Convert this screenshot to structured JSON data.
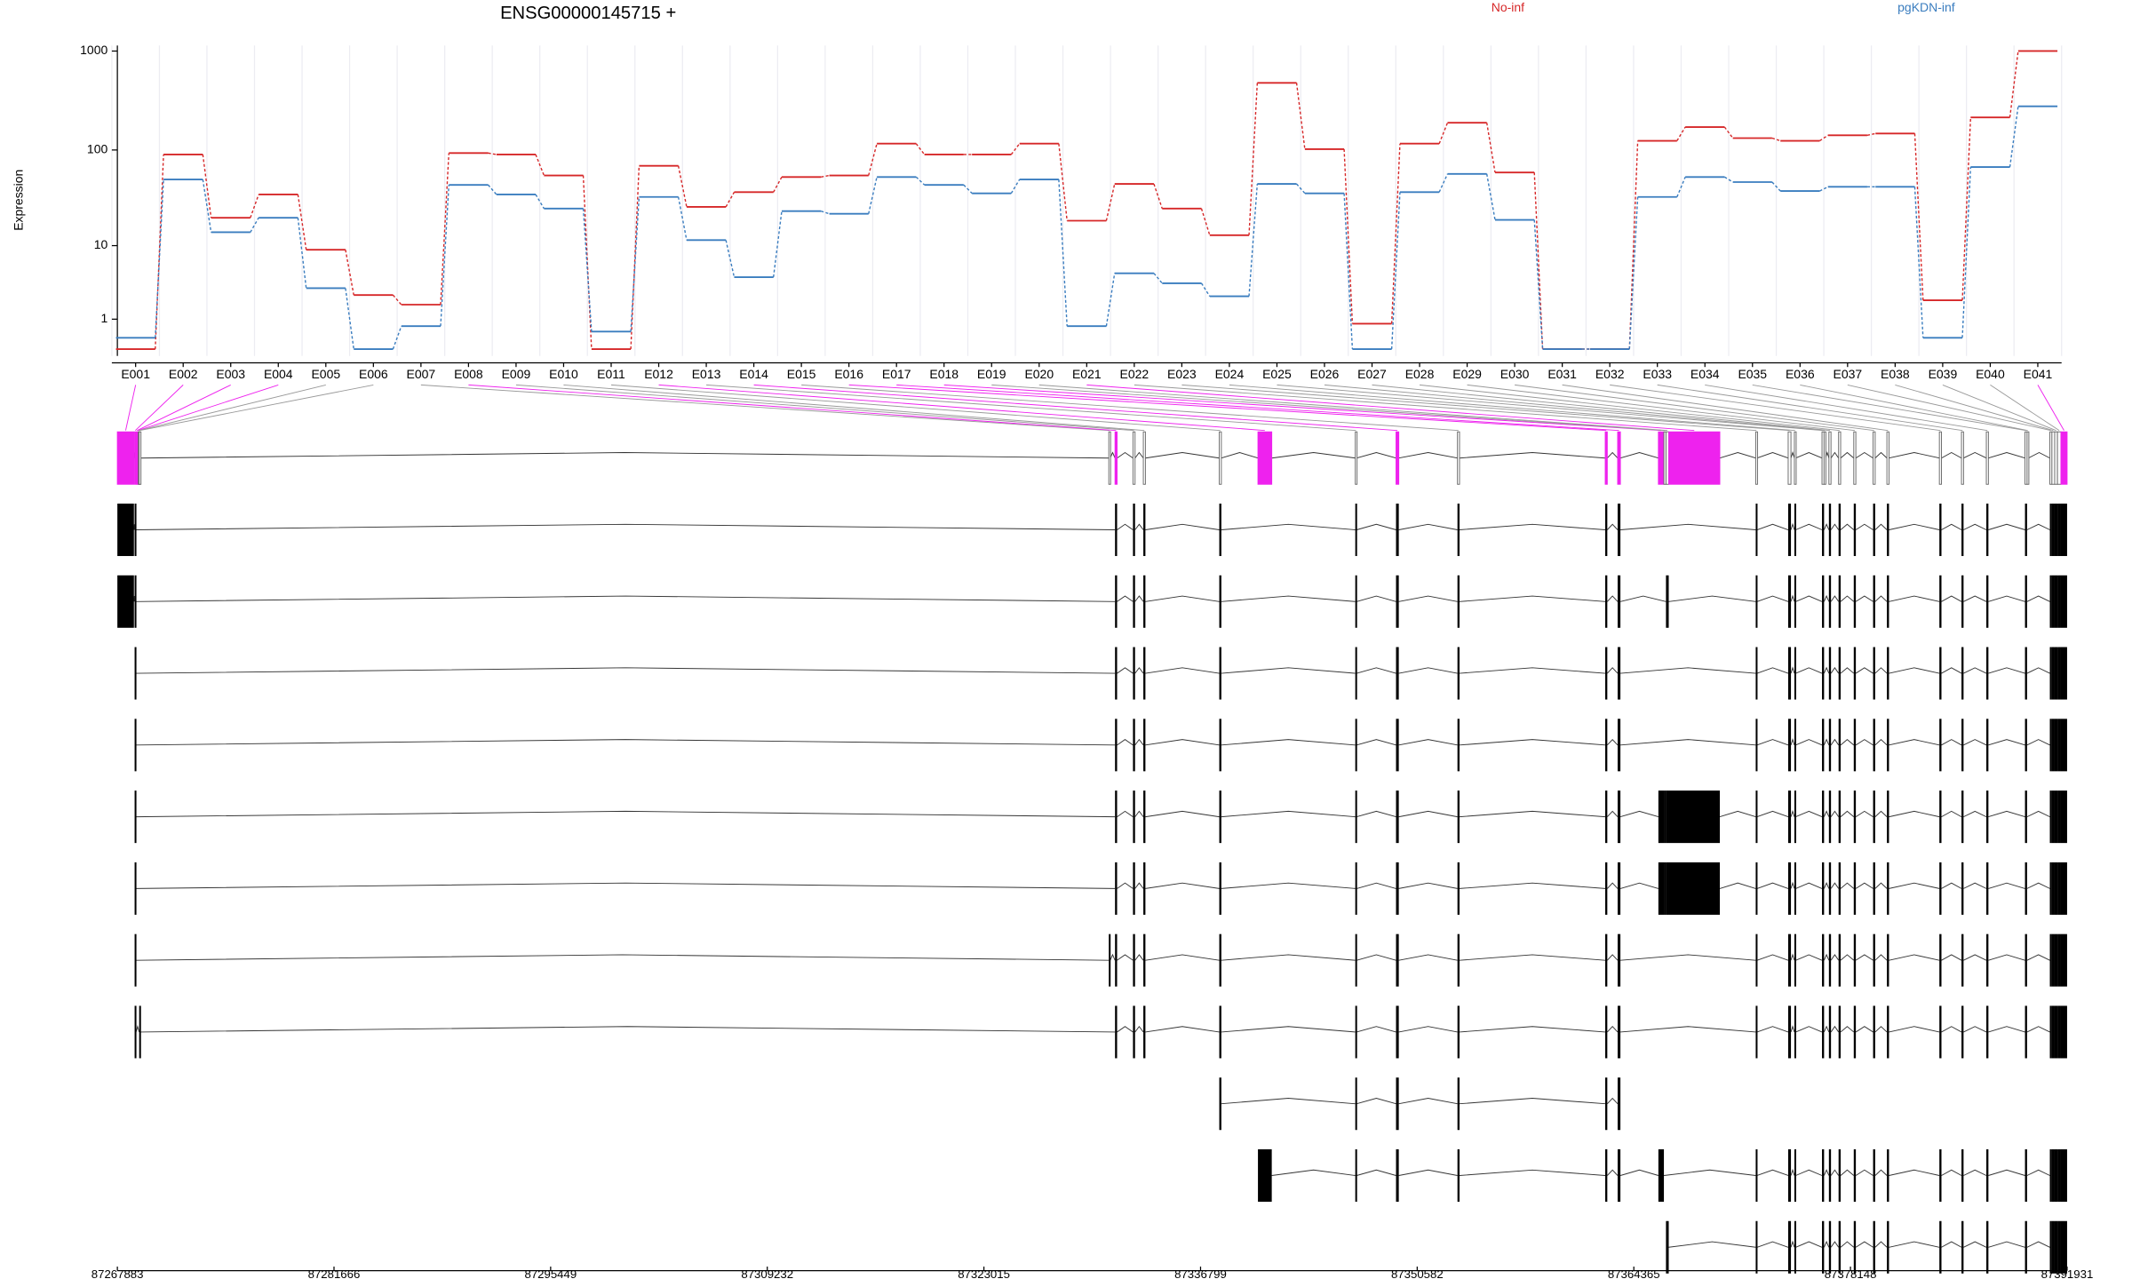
{
  "chart_data": [
    {
      "type": "line",
      "title": "ENSG00000145715 +",
      "ylabel": "Expression",
      "yscale": "log1p",
      "categories": [
        "E001",
        "E002",
        "E003",
        "E004",
        "E005",
        "E006",
        "E007",
        "E008",
        "E009",
        "E010",
        "E011",
        "E012",
        "E013",
        "E014",
        "E015",
        "E016",
        "E017",
        "E018",
        "E019",
        "E020",
        "E021",
        "E022",
        "E023",
        "E024",
        "E025",
        "E026",
        "E027",
        "E028",
        "E029",
        "E030",
        "E031",
        "E032",
        "E033",
        "E034",
        "E035",
        "E036",
        "E037",
        "E038",
        "E039",
        "E040",
        "E041"
      ],
      "series": [
        {
          "name": "No-inf",
          "color": "#d62728",
          "values": [
            0,
            90,
            20,
            35,
            9,
            2.5,
            1.8,
            93,
            90,
            55,
            0,
            69,
            26,
            37,
            53,
            55,
            116,
            90,
            90,
            116,
            18.6,
            45,
            25,
            13,
            478,
            102,
            0.8,
            116,
            189,
            59,
            0,
            0,
            124,
            171,
            132,
            124,
            141,
            147,
            2.1,
            214,
            1000
          ]
        },
        {
          "name": "pgKDN-inf",
          "color": "#3a7dbf",
          "values": [
            0.3,
            50,
            14,
            20,
            3.1,
            0,
            0.7,
            44,
            35,
            25,
            0.5,
            33,
            11.5,
            4.3,
            23.5,
            22,
            53,
            44,
            36,
            50,
            0.7,
            4.8,
            3.6,
            2.4,
            45,
            36,
            0,
            37,
            57,
            19,
            0,
            0,
            33,
            53,
            47,
            38,
            42,
            42,
            0.3,
            67,
            277
          ]
        }
      ],
      "ylim": [
        0,
        1000
      ],
      "yticks": [
        1,
        10,
        100,
        1000
      ],
      "grid": true
    },
    {
      "type": "gene-model",
      "exon_start": [
        87267883,
        87268981,
        87269113,
        87269166,
        87269218,
        87269271,
        87330961,
        87331357,
        87332499,
        87333158,
        87337990,
        87340450,
        87346643,
        87349235,
        87353144,
        87362545,
        87363335,
        87365927,
        87366278,
        87366410,
        87366586,
        87372120,
        87374185,
        87374580,
        87376337,
        87376469,
        87376777,
        87377392,
        87378358,
        87379588,
        87380467,
        87383805,
        87385211,
        87386792,
        87389252,
        87389384,
        87390833,
        87390965,
        87391141,
        87391317,
        87391537
      ],
      "exon_end": [
        87268937,
        87269069,
        87269166,
        87269218,
        87269271,
        87269333,
        87331049,
        87331489,
        87332631,
        87333290,
        87338122,
        87341329,
        87346731,
        87349411,
        87353276,
        87362677,
        87363511,
        87366278,
        87366410,
        87366586,
        87369836,
        87372208,
        87374361,
        87374668,
        87376469,
        87376557,
        87376909,
        87377524,
        87378490,
        87379720,
        87380599,
        87383937,
        87385343,
        87386924,
        87389384,
        87389472,
        87390965,
        87391141,
        87391317,
        87391537,
        87391931
      ],
      "significant": [
        0,
        1,
        2,
        3,
        7,
        11,
        13,
        15,
        16,
        17,
        20,
        40
      ],
      "significant_color": "#ee22ee",
      "transcripts": [
        [
          0,
          1,
          7,
          8,
          9,
          10,
          12,
          13,
          14,
          15,
          16,
          21,
          22,
          23,
          24,
          26,
          27,
          28,
          29,
          30,
          31,
          32,
          33,
          34,
          36,
          37,
          38,
          39,
          40
        ],
        [
          0,
          1,
          7,
          8,
          9,
          10,
          12,
          13,
          14,
          15,
          16,
          19,
          21,
          22,
          23,
          24,
          26,
          27,
          28,
          29,
          30,
          31,
          32,
          33,
          34,
          36,
          37,
          38,
          39,
          40
        ],
        [
          1,
          7,
          8,
          9,
          10,
          12,
          13,
          14,
          15,
          16,
          21,
          22,
          23,
          24,
          26,
          27,
          28,
          29,
          30,
          31,
          32,
          33,
          34,
          36,
          37,
          38,
          39,
          40
        ],
        [
          1,
          7,
          8,
          9,
          10,
          12,
          13,
          14,
          15,
          16,
          21,
          22,
          23,
          24,
          26,
          27,
          28,
          29,
          30,
          31,
          32,
          33,
          34,
          36,
          37,
          38,
          39,
          40
        ],
        [
          1,
          7,
          8,
          9,
          10,
          12,
          13,
          14,
          15,
          16,
          17,
          18,
          19,
          20,
          21,
          22,
          23,
          24,
          26,
          27,
          28,
          29,
          30,
          31,
          32,
          33,
          34,
          36,
          37,
          38,
          39,
          40
        ],
        [
          1,
          7,
          8,
          9,
          10,
          12,
          13,
          14,
          15,
          16,
          17,
          18,
          19,
          20,
          21,
          22,
          23,
          24,
          26,
          27,
          28,
          29,
          30,
          31,
          32,
          33,
          34,
          36,
          37,
          38,
          39,
          40
        ],
        [
          1,
          6,
          7,
          8,
          9,
          10,
          12,
          13,
          14,
          15,
          16,
          21,
          22,
          23,
          24,
          26,
          27,
          28,
          29,
          30,
          31,
          32,
          33,
          34,
          36,
          37,
          38,
          39,
          40
        ],
        [
          1,
          5,
          7,
          8,
          9,
          10,
          12,
          13,
          14,
          15,
          16,
          21,
          22,
          23,
          24,
          26,
          27,
          28,
          29,
          30,
          31,
          32,
          33,
          34,
          36,
          37,
          38,
          39,
          40
        ],
        [
          10,
          12,
          13,
          14,
          15,
          16
        ],
        [
          11,
          12,
          13,
          14,
          15,
          16,
          17,
          21,
          22,
          23,
          24,
          26,
          27,
          28,
          29,
          30,
          31,
          32,
          33,
          34,
          36,
          37,
          38,
          39,
          40
        ],
        [
          19,
          21,
          22,
          23,
          24,
          26,
          27,
          28,
          29,
          30,
          31,
          32,
          33,
          34,
          36,
          37,
          38,
          39,
          40
        ]
      ],
      "xlim": [
        87267883,
        87391931
      ],
      "xticks": [
        87267883,
        87281666,
        87295449,
        87309232,
        87323015,
        87336799,
        87350582,
        87364365,
        87378148,
        87391931
      ]
    }
  ]
}
